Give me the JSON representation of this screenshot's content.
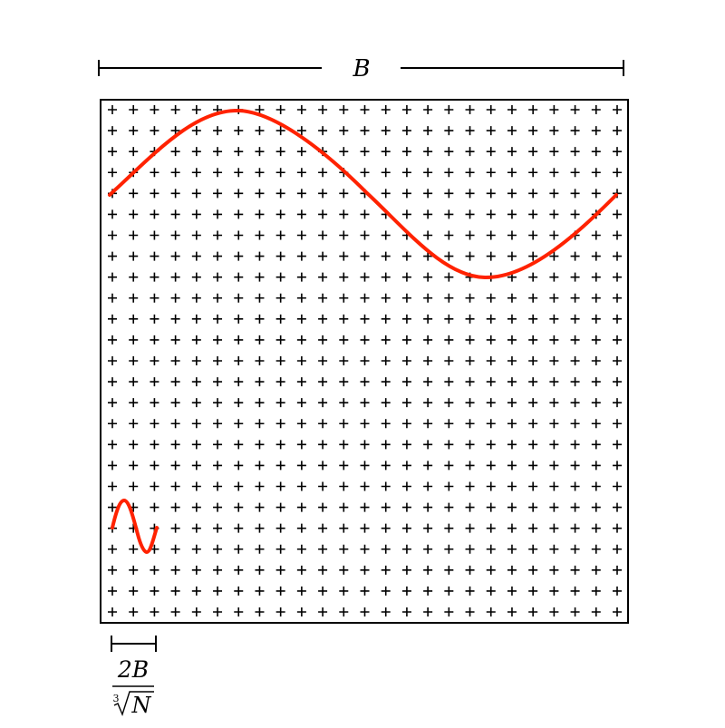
{
  "top_label": "B",
  "bottom_label": {
    "numerator": "2B",
    "root_index": "3",
    "radicand": "N"
  },
  "grid": {
    "columns": 25,
    "rows": 25,
    "marker": "+"
  },
  "colors": {
    "curve": "#ff2200",
    "lines": "#000000",
    "background": "#ffffff"
  }
}
